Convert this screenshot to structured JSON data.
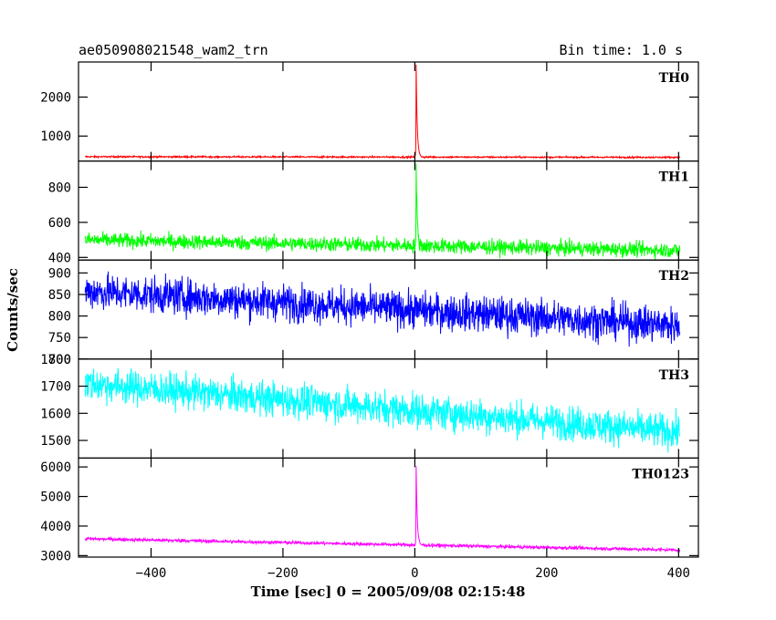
{
  "chart_data": {
    "type": "line",
    "title": "ae050908021548_wam2_trn",
    "bin_time": "Bin time: 1.0 s",
    "xlabel": "Time [sec] 0 = 2005/09/08 02:15:48",
    "ylabel": "Counts/sec",
    "xlim": [
      -510,
      430
    ],
    "x_ticks": [
      -400,
      -200,
      0,
      200,
      400
    ],
    "x_tick_labels": [
      "−400",
      "−200",
      "0",
      "200",
      "400"
    ],
    "x_range": [
      -500,
      402
    ],
    "burst_time": 2,
    "panels": [
      {
        "name": "TH0",
        "color": "#ff0000",
        "ylim": [
          360,
          2900
        ],
        "yticks": [
          1000,
          2000
        ],
        "ytick_labels": [
          "1000",
          "2000"
        ],
        "start_level": 470,
        "end_level": 455,
        "noise": 14,
        "peak": 2850
      },
      {
        "name": "TH1",
        "color": "#00ff00",
        "ylim": [
          385,
          950
        ],
        "yticks": [
          400,
          600,
          800
        ],
        "ytick_labels": [
          "400",
          "600",
          "800"
        ],
        "start_level": 500,
        "end_level": 440,
        "noise": 30,
        "peak": 945
      },
      {
        "name": "TH2",
        "color": "#0000ff",
        "ylim": [
          700,
          930
        ],
        "yticks": [
          700,
          750,
          800,
          850,
          900
        ],
        "ytick_labels": [
          "700",
          "750",
          "800",
          "850",
          "900"
        ],
        "start_level": 858,
        "end_level": 778,
        "noise": 30,
        "peak": null
      },
      {
        "name": "TH3",
        "color": "#00ffff",
        "ylim": [
          1435,
          1800
        ],
        "yticks": [
          1500,
          1600,
          1700,
          1800
        ],
        "ytick_labels": [
          "1500",
          "1600",
          "1700",
          "1800"
        ],
        "start_level": 1710,
        "end_level": 1530,
        "noise": 45,
        "peak": null
      },
      {
        "name": "TH0123",
        "color": "#ff00ff",
        "ylim": [
          2950,
          6300
        ],
        "yticks": [
          3000,
          4000,
          5000,
          6000
        ],
        "ytick_labels": [
          "3000",
          "4000",
          "5000",
          "6000"
        ],
        "start_level": 3570,
        "end_level": 3190,
        "noise": 40,
        "peak": 6250
      }
    ]
  }
}
